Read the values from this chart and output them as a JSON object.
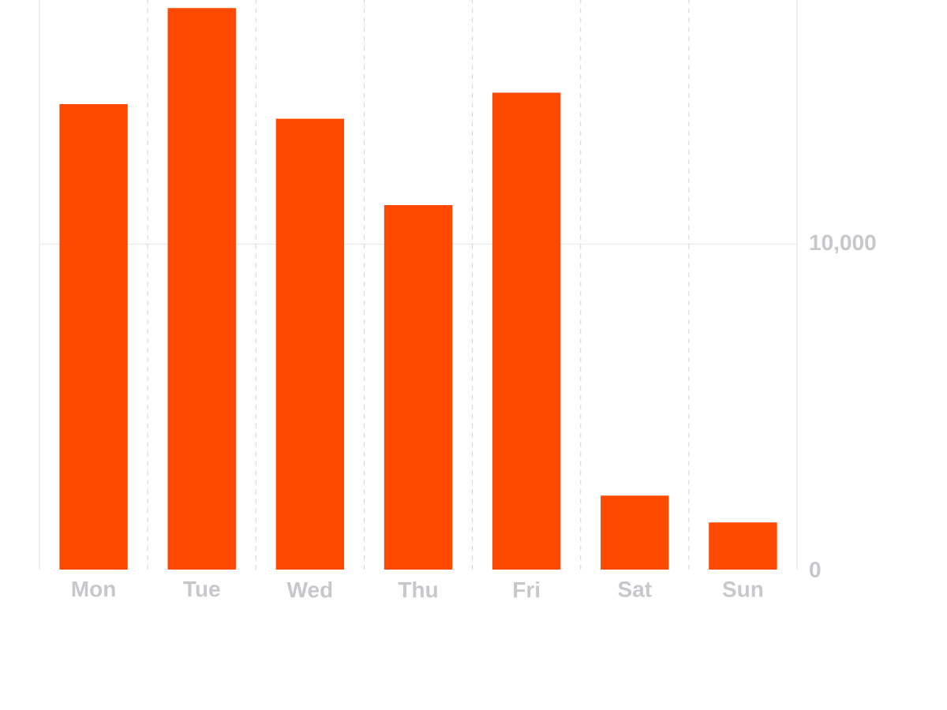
{
  "chart_data": {
    "type": "bar",
    "categories": [
      "Mon",
      "Tue",
      "Wed",
      "Thu",
      "Fri",
      "Sat",
      "Sun"
    ],
    "values": [
      14300,
      17250,
      13850,
      11200,
      14650,
      2270,
      1450
    ],
    "color": "#fe4a00",
    "ylim": [
      0,
      17500
    ],
    "yticks": [
      0,
      {
        "value": 10000,
        "label": "10,000"
      }
    ],
    "grid": true,
    "ref_lines": [
      {
        "axis": "y",
        "value": 10000,
        "color": "#dfdfdf"
      }
    ]
  }
}
